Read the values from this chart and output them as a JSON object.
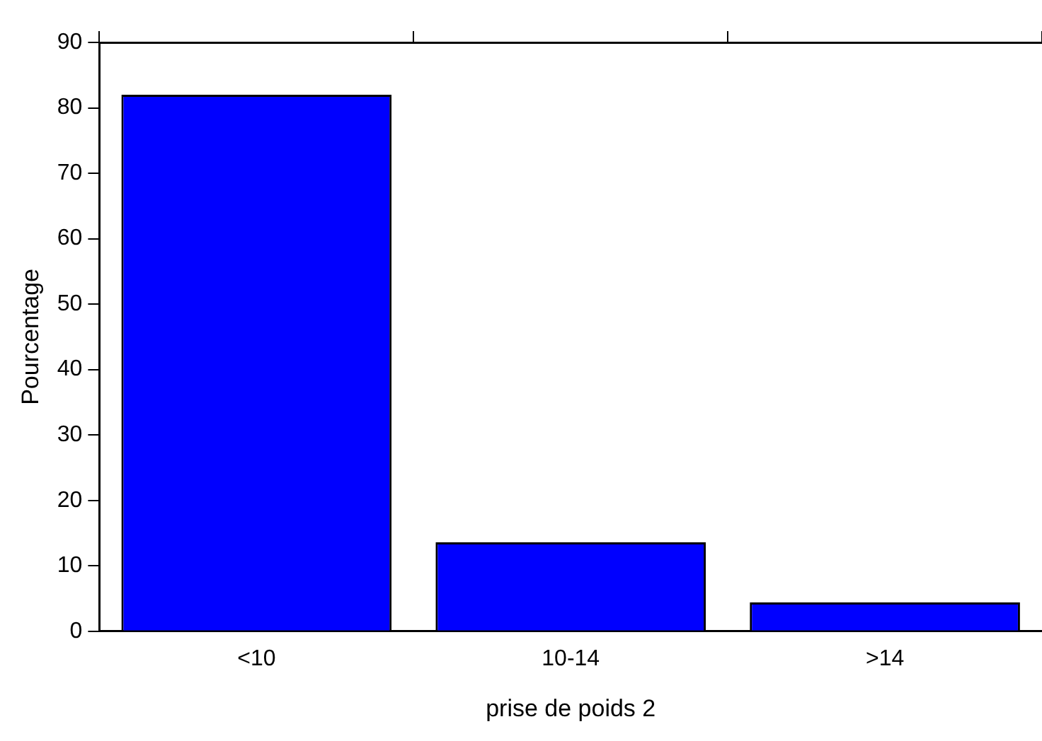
{
  "chart_data": {
    "type": "bar",
    "xlabel": "prise de poids 2",
    "ylabel": "Pourcentage",
    "categories": [
      "<10",
      "10-14",
      ">14"
    ],
    "values": [
      82,
      13.6,
      4.4
    ],
    "color": "#0000ff",
    "ylim": [
      0,
      90
    ],
    "yticks": [
      0,
      10,
      20,
      30,
      40,
      50,
      60,
      70,
      80,
      90
    ],
    "grid": false,
    "legend": false
  }
}
